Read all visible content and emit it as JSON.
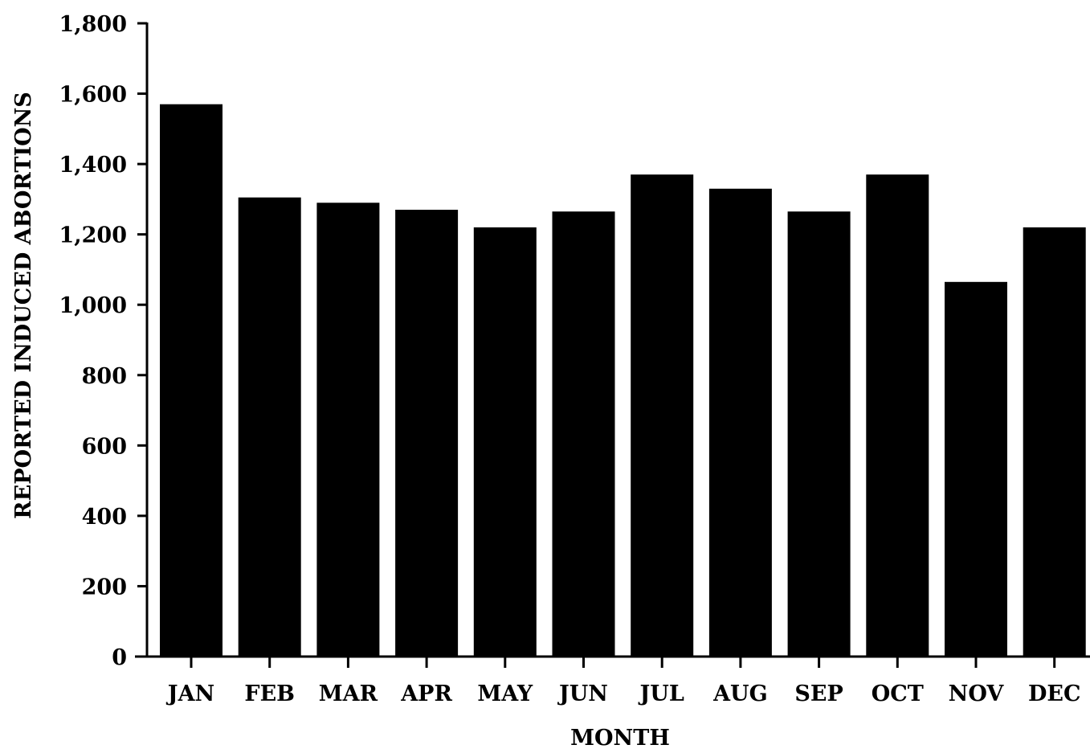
{
  "chart_data": {
    "type": "bar",
    "title": "",
    "xlabel": "MONTH",
    "ylabel": "REPORTED INDUCED ABORTIONS",
    "categories": [
      "JAN",
      "FEB",
      "MAR",
      "APR",
      "MAY",
      "JUN",
      "JUL",
      "AUG",
      "SEP",
      "OCT",
      "NOV",
      "DEC"
    ],
    "values": [
      1570,
      1305,
      1290,
      1270,
      1220,
      1265,
      1370,
      1330,
      1265,
      1370,
      1065,
      1220
    ],
    "ylim": [
      0,
      1800
    ],
    "yticks": [
      0,
      200,
      400,
      600,
      800,
      1000,
      1200,
      1400,
      1600,
      1800
    ],
    "ytick_labels": [
      "0",
      "200",
      "400",
      "600",
      "800",
      "1,000",
      "1,200",
      "1,400",
      "1,600",
      "1,800"
    ],
    "grid": false,
    "legend": "none",
    "bar_color": "#000000"
  }
}
